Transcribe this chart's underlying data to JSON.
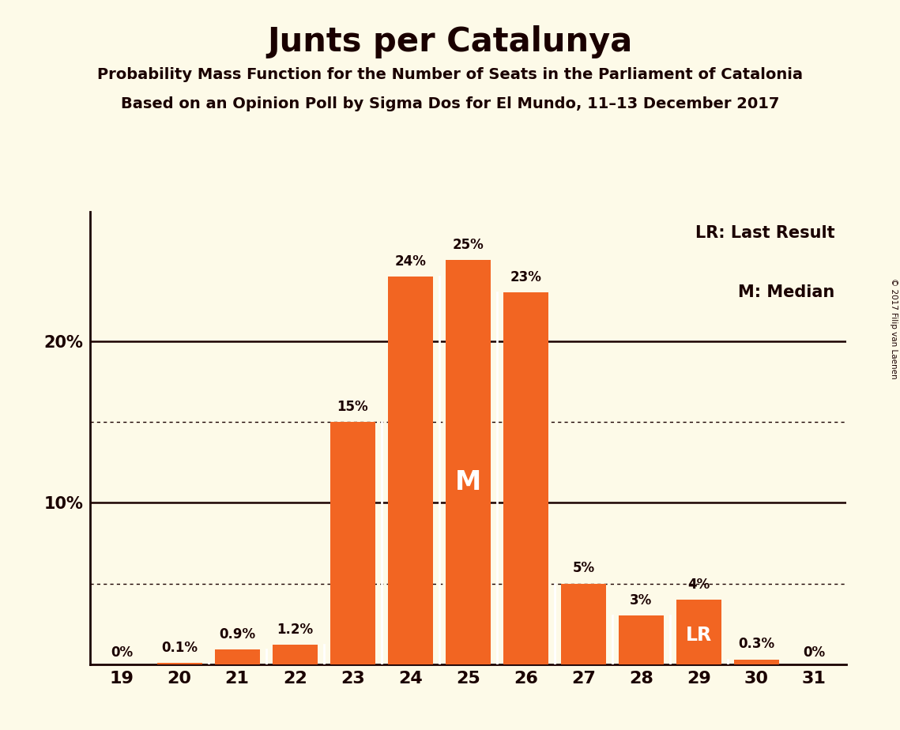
{
  "title": "Junts per Catalunya",
  "subtitle1": "Probability Mass Function for the Number of Seats in the Parliament of Catalonia",
  "subtitle2": "Based on an Opinion Poll by Sigma Dos for El Mundo, 11–13 December 2017",
  "copyright": "© 2017 Filip van Laenen",
  "seats": [
    19,
    20,
    21,
    22,
    23,
    24,
    25,
    26,
    27,
    28,
    29,
    30,
    31
  ],
  "probabilities": [
    0.0,
    0.1,
    0.9,
    1.2,
    15.0,
    24.0,
    25.0,
    23.0,
    5.0,
    3.0,
    4.0,
    0.3,
    0.0
  ],
  "labels": [
    "0%",
    "0.1%",
    "0.9%",
    "1.2%",
    "15%",
    "24%",
    "25%",
    "23%",
    "5%",
    "3%",
    "4%",
    "0.3%",
    "0%"
  ],
  "show_label": [
    true,
    true,
    true,
    true,
    true,
    true,
    true,
    true,
    true,
    true,
    true,
    true,
    true
  ],
  "bar_color": "#f26522",
  "median_seat": 25,
  "lr_seat": 29,
  "background_color": "#fdfae8",
  "text_color": "#1a0000",
  "dotted_lines": [
    5.0,
    15.0
  ],
  "solid_lines": [
    10.0,
    20.0
  ],
  "ylim": [
    0,
    28
  ],
  "legend_lr": "LR: Last Result",
  "legend_m": "M: Median"
}
